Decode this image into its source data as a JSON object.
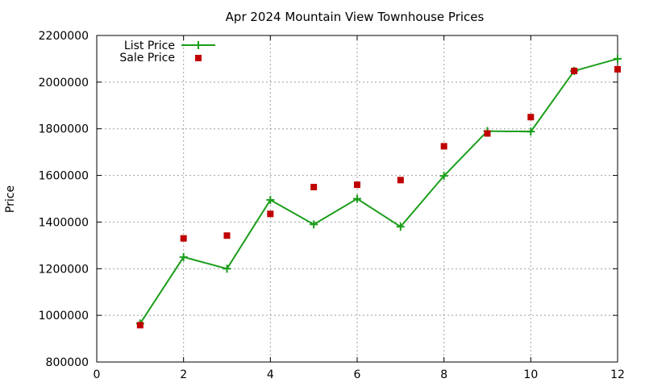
{
  "chart_data": {
    "type": "line",
    "title": "Apr 2024 Mountain View Townhouse Prices",
    "xlabel": "",
    "ylabel": "Price",
    "xlim": [
      0,
      12
    ],
    "ylim": [
      800000,
      2200000
    ],
    "xticks": [
      0,
      2,
      4,
      6,
      8,
      10,
      12
    ],
    "yticks": [
      800000,
      1000000,
      1200000,
      1400000,
      1600000,
      1800000,
      2000000,
      2200000
    ],
    "grid": true,
    "legend_position": "top-left",
    "series": [
      {
        "name": "List Price",
        "style": "line-with-plus-markers",
        "color": "#1a9e1a",
        "x": [
          1,
          2,
          3,
          4,
          5,
          6,
          7,
          8,
          9,
          10,
          11,
          12
        ],
        "y": [
          965000,
          1250000,
          1200000,
          1495000,
          1390000,
          1500000,
          1380000,
          1598000,
          1790000,
          1788000,
          2048000,
          2100000
        ]
      },
      {
        "name": "Sale Price",
        "style": "square-markers",
        "color": "#c00000",
        "x": [
          1,
          2,
          3,
          4,
          5,
          6,
          7,
          8,
          9,
          10,
          11,
          12
        ],
        "y": [
          958000,
          1330000,
          1342000,
          1435000,
          1550000,
          1560000,
          1580000,
          1725000,
          1780000,
          1850000,
          2048000,
          2055000
        ]
      }
    ]
  }
}
